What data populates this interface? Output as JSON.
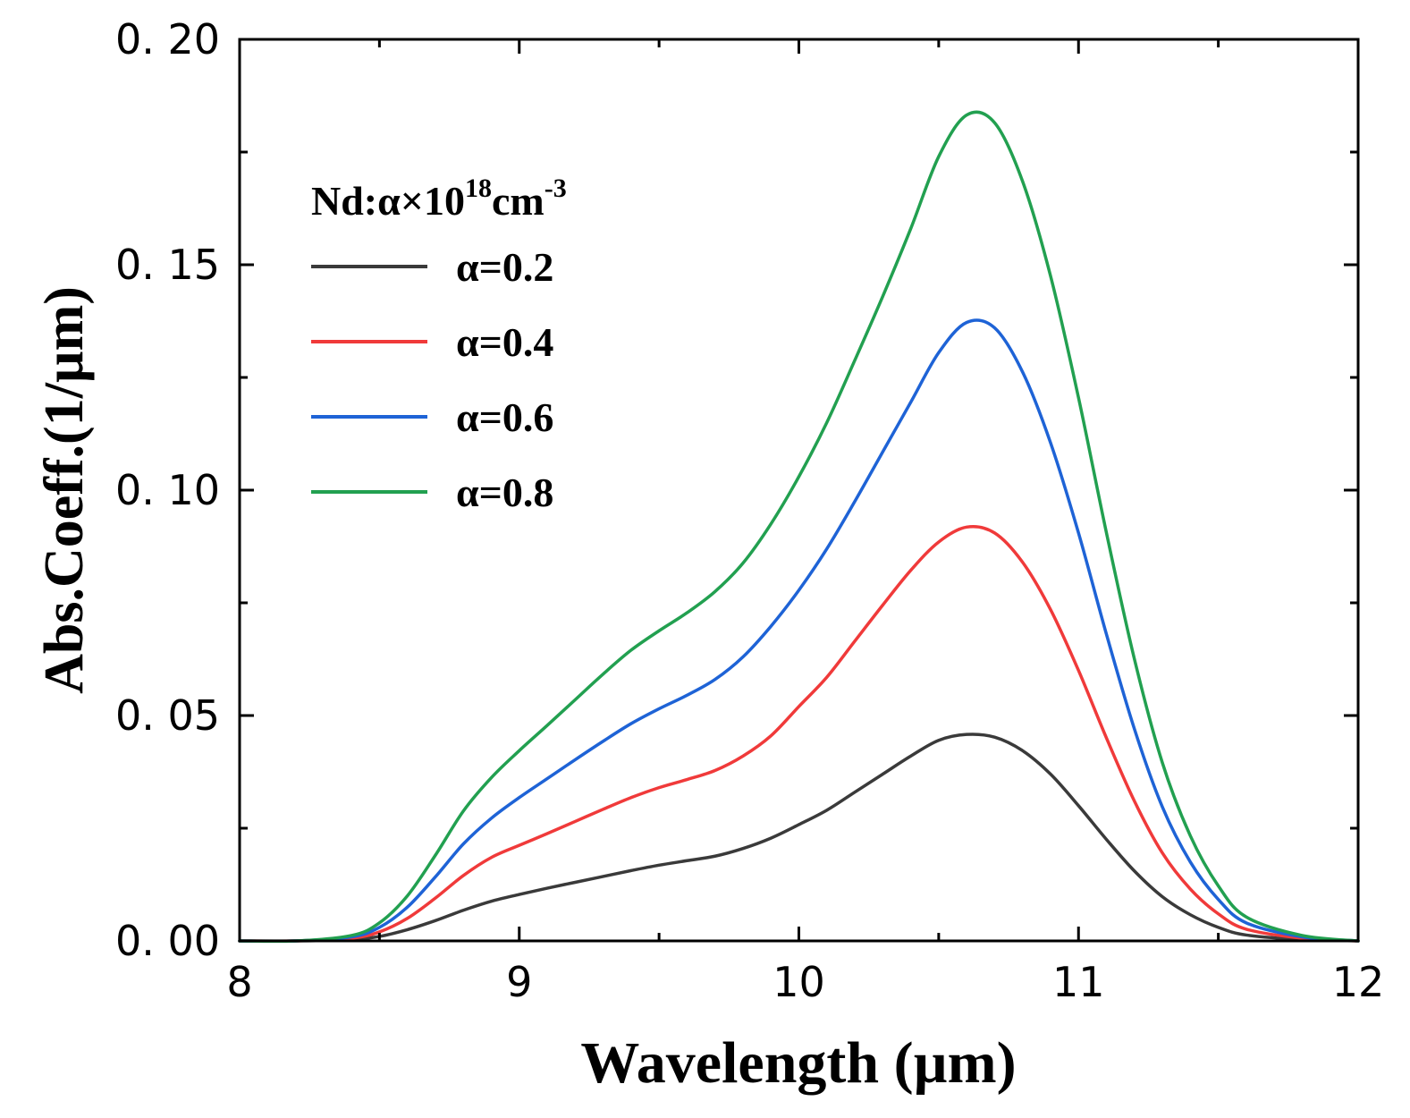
{
  "chart_data": {
    "type": "line",
    "title": "",
    "xlabel": "Wavelength (µm)",
    "ylabel": "Abs.Coeff.(1/µm)",
    "xlim": [
      8,
      12
    ],
    "ylim": [
      0,
      0.2
    ],
    "x_ticks": [
      8,
      9,
      10,
      11,
      12
    ],
    "x_tick_labels": [
      "8",
      "9",
      "10",
      "11",
      "12"
    ],
    "x_minor_ticks": [
      8.5,
      9.5,
      10.5,
      11.5
    ],
    "y_ticks": [
      0,
      0.05,
      0.1,
      0.15,
      0.2
    ],
    "y_tick_labels": [
      "0. 00",
      "0. 05",
      "0. 10",
      "0. 15",
      "0. 20"
    ],
    "y_minor_ticks": [
      0.025,
      0.075,
      0.125,
      0.175
    ],
    "grid": false,
    "legend": {
      "position": "upper-left",
      "title_main": "Nd:α×10",
      "title_sup1": "18",
      "title_mid": "cm",
      "title_sup2": "-3"
    },
    "x": [
      8.0,
      8.2,
      8.4,
      8.5,
      8.6,
      8.7,
      8.8,
      8.9,
      9.0,
      9.1,
      9.2,
      9.3,
      9.4,
      9.5,
      9.6,
      9.7,
      9.8,
      9.9,
      10.0,
      10.1,
      10.2,
      10.3,
      10.4,
      10.5,
      10.6,
      10.7,
      10.8,
      10.9,
      11.0,
      11.1,
      11.2,
      11.3,
      11.4,
      11.5,
      11.6,
      11.8,
      12.0
    ],
    "series": [
      {
        "name": "α=0.2",
        "label": "α=0.2",
        "color": "#3a3a3a",
        "values": [
          0.0,
          0.0,
          0.0003,
          0.001,
          0.0025,
          0.0045,
          0.0068,
          0.0088,
          0.0103,
          0.0117,
          0.013,
          0.0143,
          0.0156,
          0.0168,
          0.0178,
          0.0188,
          0.0205,
          0.0228,
          0.0258,
          0.029,
          0.033,
          0.037,
          0.041,
          0.0445,
          0.0458,
          0.0452,
          0.0422,
          0.037,
          0.03,
          0.0225,
          0.0155,
          0.0098,
          0.0058,
          0.003,
          0.0013,
          0.0003,
          0.0
        ]
      },
      {
        "name": "α=0.4",
        "label": "α=0.4",
        "color": "#f03a3a",
        "values": [
          0.0,
          0.0,
          0.0006,
          0.002,
          0.005,
          0.0095,
          0.0145,
          0.0185,
          0.0212,
          0.0238,
          0.0265,
          0.0292,
          0.0318,
          0.034,
          0.0358,
          0.0378,
          0.041,
          0.0455,
          0.052,
          0.0585,
          0.0665,
          0.0745,
          0.0822,
          0.0885,
          0.0918,
          0.0905,
          0.084,
          0.0735,
          0.06,
          0.045,
          0.031,
          0.0195,
          0.0115,
          0.006,
          0.0026,
          0.0006,
          0.0
        ]
      },
      {
        "name": "α=0.6",
        "label": "α=0.6",
        "color": "#1e63d6",
        "values": [
          0.0,
          0.0,
          0.0009,
          0.003,
          0.0075,
          0.0142,
          0.0215,
          0.0272,
          0.0318,
          0.036,
          0.0402,
          0.0443,
          0.0482,
          0.0515,
          0.0545,
          0.058,
          0.063,
          0.0698,
          0.0778,
          0.087,
          0.0975,
          0.1085,
          0.1195,
          0.1305,
          0.1372,
          0.136,
          0.1262,
          0.1105,
          0.0905,
          0.068,
          0.047,
          0.0297,
          0.0175,
          0.0092,
          0.004,
          0.0009,
          0.0
        ]
      },
      {
        "name": "α=0.8",
        "label": "α=0.8",
        "color": "#22a050",
        "values": [
          0.0,
          0.0,
          0.0012,
          0.004,
          0.01,
          0.019,
          0.0288,
          0.0362,
          0.0422,
          0.0478,
          0.0535,
          0.0592,
          0.0645,
          0.0688,
          0.0728,
          0.0775,
          0.0838,
          0.0925,
          0.103,
          0.115,
          0.1288,
          0.143,
          0.158,
          0.174,
          0.1832,
          0.1815,
          0.1685,
          0.1475,
          0.1205,
          0.0905,
          0.0625,
          0.0395,
          0.0233,
          0.0122,
          0.0053,
          0.0012,
          0.0
        ]
      }
    ]
  }
}
